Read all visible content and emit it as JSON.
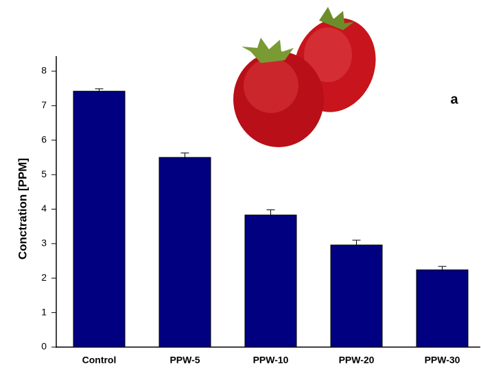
{
  "chart_data": {
    "type": "bar",
    "y_label": "Conctration [PPM]",
    "annotation": "a",
    "categories": [
      "Control",
      "PPW-5",
      "PPW-10",
      "PPW-20",
      "PPW-30"
    ],
    "values": [
      7.42,
      5.5,
      3.83,
      2.96,
      2.24
    ],
    "errors": [
      0.07,
      0.13,
      0.15,
      0.14,
      0.1
    ],
    "color": "#000080",
    "ylim": [
      0,
      8
    ],
    "yticks": [
      0,
      1,
      2,
      3,
      4,
      5,
      6,
      7,
      8
    ],
    "grid": false
  }
}
